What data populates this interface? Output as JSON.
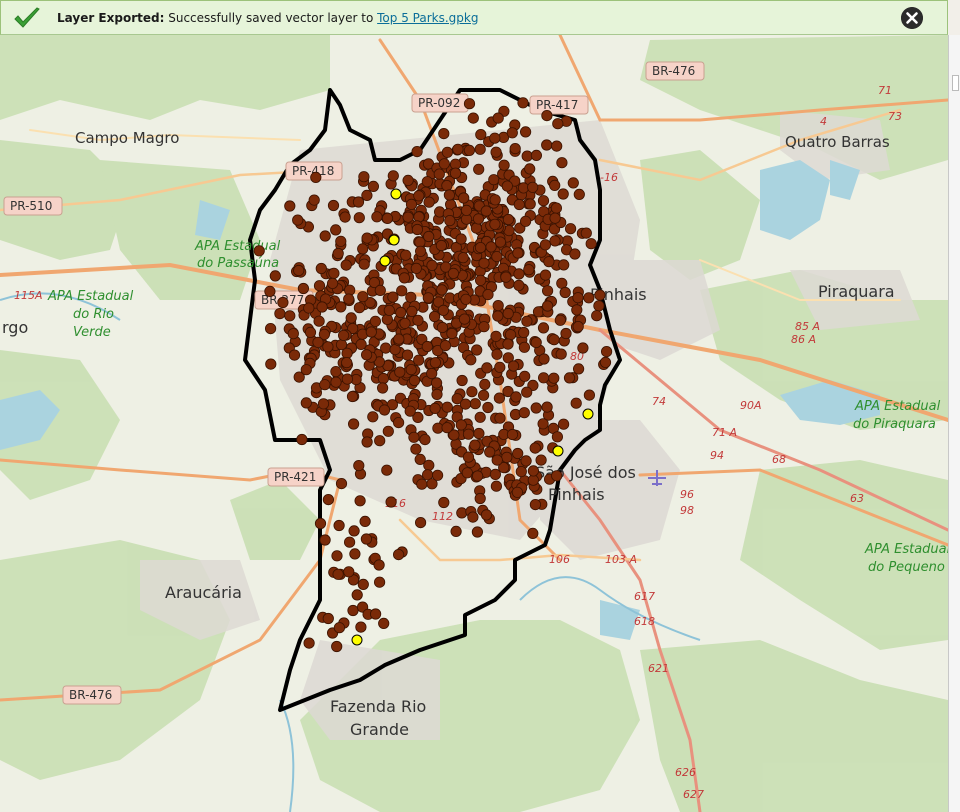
{
  "message_bar": {
    "title": "Layer Exported:",
    "text": "Successfully saved vector layer to",
    "link": "Top 5 Parks.gpkg",
    "icons": {
      "status": "checkmark-icon",
      "close": "close-icon"
    },
    "colors": {
      "background": "#e6f4d9",
      "check": "#3aa035"
    }
  },
  "map": {
    "colors": {
      "park_points": "#7a2a08",
      "top_parks": "#ffff00",
      "boundary": "#000000",
      "background": "#f2efe9"
    },
    "place_labels": [
      {
        "key": "campo_magro",
        "text": "Campo Magro"
      },
      {
        "key": "quatro_barras",
        "text": "Quatro Barras"
      },
      {
        "key": "pinhais",
        "text": "Pinhais"
      },
      {
        "key": "piraquara",
        "text": "Piraquara"
      },
      {
        "key": "largo",
        "text": "rgo"
      },
      {
        "key": "sjp1",
        "text": "São José dos"
      },
      {
        "key": "sjp2",
        "text": "Pinhais"
      },
      {
        "key": "araucaria",
        "text": "Araucária"
      },
      {
        "key": "fazenda1",
        "text": "Fazenda Rio"
      },
      {
        "key": "fazenda2",
        "text": "Grande"
      }
    ],
    "park_labels": [
      {
        "key": "apa_passauna_1",
        "text": "APA Estadual"
      },
      {
        "key": "apa_passauna_2",
        "text": "do Passaúna"
      },
      {
        "key": "apa_rioverde_1",
        "text": "APA Estadual"
      },
      {
        "key": "apa_rioverde_2",
        "text": "do Rio"
      },
      {
        "key": "apa_rioverde_3",
        "text": "Verde"
      },
      {
        "key": "apa_piraquara_1",
        "text": "APA Estadual"
      },
      {
        "key": "apa_piraquara_2",
        "text": "do Piraquara"
      },
      {
        "key": "apa_pequeno_1",
        "text": "APA Estadual"
      },
      {
        "key": "apa_pequeno_2",
        "text": "do Pequeno"
      }
    ],
    "road_shields": [
      {
        "key": "br476_top",
        "text": "BR-476"
      },
      {
        "key": "pr092",
        "text": "PR-092"
      },
      {
        "key": "pr417",
        "text": "PR-417"
      },
      {
        "key": "pr418",
        "text": "PR-418"
      },
      {
        "key": "pr510",
        "text": "PR-510"
      },
      {
        "key": "br277",
        "text": "BR-277"
      },
      {
        "key": "pr421",
        "text": "PR-421"
      },
      {
        "key": "br476_bot",
        "text": "BR-476"
      }
    ],
    "road_numbers": [
      {
        "key": "r71",
        "text": "71"
      },
      {
        "key": "r73",
        "text": "73"
      },
      {
        "key": "r4",
        "text": "4"
      },
      {
        "key": "r16",
        "text": "-16"
      },
      {
        "key": "r85a",
        "text": "85 A"
      },
      {
        "key": "r86a",
        "text": "86 A"
      },
      {
        "key": "r80",
        "text": "80"
      },
      {
        "key": "r74",
        "text": "74"
      },
      {
        "key": "r90a",
        "text": "90A"
      },
      {
        "key": "r71a",
        "text": "71 A"
      },
      {
        "key": "r94",
        "text": "94"
      },
      {
        "key": "r68",
        "text": "68"
      },
      {
        "key": "r63",
        "text": "63"
      },
      {
        "key": "r96",
        "text": "96"
      },
      {
        "key": "r98",
        "text": "98"
      },
      {
        "key": "r106",
        "text": "106"
      },
      {
        "key": "r103a",
        "text": "103 A"
      },
      {
        "key": "r617",
        "text": "617"
      },
      {
        "key": "r618",
        "text": "618"
      },
      {
        "key": "r621",
        "text": "621"
      },
      {
        "key": "r626",
        "text": "626"
      },
      {
        "key": "r627",
        "text": "627"
      },
      {
        "key": "r115a",
        "text": "115A"
      },
      {
        "key": "r116",
        "text": "116"
      },
      {
        "key": "r112",
        "text": "112"
      }
    ]
  }
}
